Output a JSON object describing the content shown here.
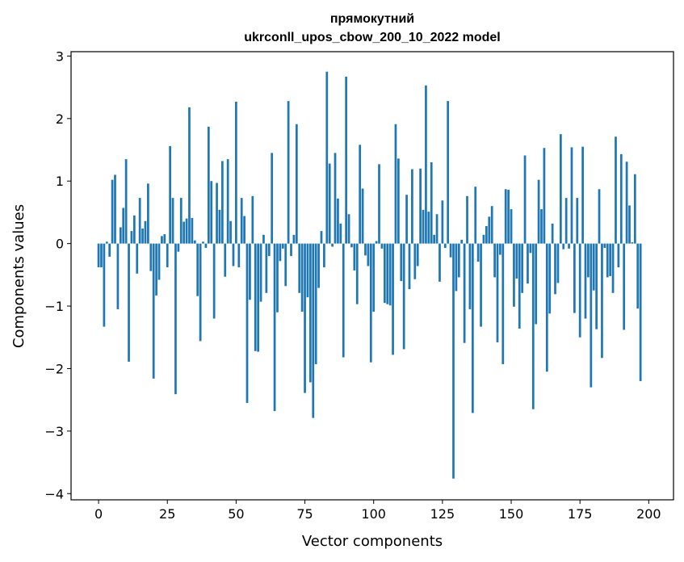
{
  "chart_data": {
    "type": "bar",
    "title": "прямокутний",
    "subtitle": "ukrconll_upos_cbow_200_10_2022 model",
    "xlabel": "Vector components",
    "ylabel": "Components values",
    "xlim": [
      -10,
      209
    ],
    "ylim": [
      -4.1,
      3.07
    ],
    "xticks": [
      0,
      25,
      50,
      75,
      100,
      125,
      150,
      175,
      200
    ],
    "yticks": [
      -4,
      -3,
      -2,
      -1,
      0,
      1,
      2,
      3
    ],
    "bar_color": "#1f77b4",
    "values": [
      -0.38,
      -0.38,
      -1.33,
      0.03,
      -0.21,
      1.02,
      1.1,
      -1.05,
      0.26,
      0.57,
      1.35,
      -1.89,
      0.2,
      0.45,
      -0.48,
      0.73,
      0.24,
      0.36,
      0.96,
      -0.44,
      -2.16,
      -0.83,
      -0.58,
      0.12,
      0.15,
      -0.38,
      1.56,
      0.73,
      -2.41,
      -0.13,
      0.73,
      0.35,
      0.4,
      2.18,
      0.41,
      0.05,
      -0.84,
      -1.56,
      0.03,
      -0.07,
      1.87,
      1.0,
      -1.2,
      0.97,
      0.54,
      1.32,
      -0.53,
      1.35,
      0.36,
      -0.36,
      2.27,
      -0.38,
      0.73,
      0.44,
      -2.55,
      -0.9,
      0.76,
      -1.72,
      -1.73,
      -0.93,
      0.14,
      -0.79,
      -0.2,
      1.45,
      -2.68,
      -1.1,
      -0.28,
      -0.08,
      -0.68,
      2.28,
      -0.2,
      0.14,
      1.91,
      -0.79,
      -1.09,
      -2.39,
      -0.86,
      -2.22,
      -2.79,
      -1.93,
      -0.71,
      0.2,
      -0.38,
      2.75,
      1.28,
      -0.05,
      1.45,
      0.72,
      0.32,
      -1.82,
      2.67,
      0.47,
      -0.06,
      -0.43,
      -0.97,
      1.58,
      0.88,
      -0.19,
      -0.36,
      -1.9,
      -1.09,
      0.04,
      1.27,
      -0.08,
      -0.95,
      -0.97,
      -0.99,
      -1.78,
      1.91,
      1.36,
      -0.6,
      -1.69,
      0.78,
      -0.73,
      1.19,
      -0.57,
      -0.36,
      1.2,
      0.54,
      2.53,
      0.51,
      1.3,
      0.14,
      0.47,
      -0.61,
      0.69,
      -0.07,
      2.28,
      -0.22,
      -3.76,
      -0.76,
      -0.54,
      0.06,
      -1.59,
      0.76,
      -1.05,
      -2.71,
      0.91,
      -0.29,
      -1.33,
      0.14,
      0.28,
      0.43,
      0.6,
      -0.54,
      -1.58,
      -0.18,
      -1.93,
      0.87,
      0.86,
      0.55,
      -1.01,
      -0.56,
      -1.36,
      -0.79,
      1.41,
      -0.64,
      -0.15,
      -2.65,
      -1.29,
      1.02,
      0.55,
      1.53,
      -2.05,
      -1.12,
      0.32,
      -0.81,
      -0.63,
      1.75,
      -0.09,
      0.73,
      -0.08,
      1.54,
      -1.11,
      0.73,
      -1.5,
      1.55,
      -1.2,
      -0.54,
      -2.3,
      -0.75,
      -1.37,
      0.87,
      -1.83,
      -0.07,
      -0.54,
      -0.52,
      -0.79,
      1.71,
      -0.38,
      1.43,
      -1.38,
      1.31,
      0.61,
      0.02,
      1.11,
      -1.04,
      -2.2
    ]
  }
}
